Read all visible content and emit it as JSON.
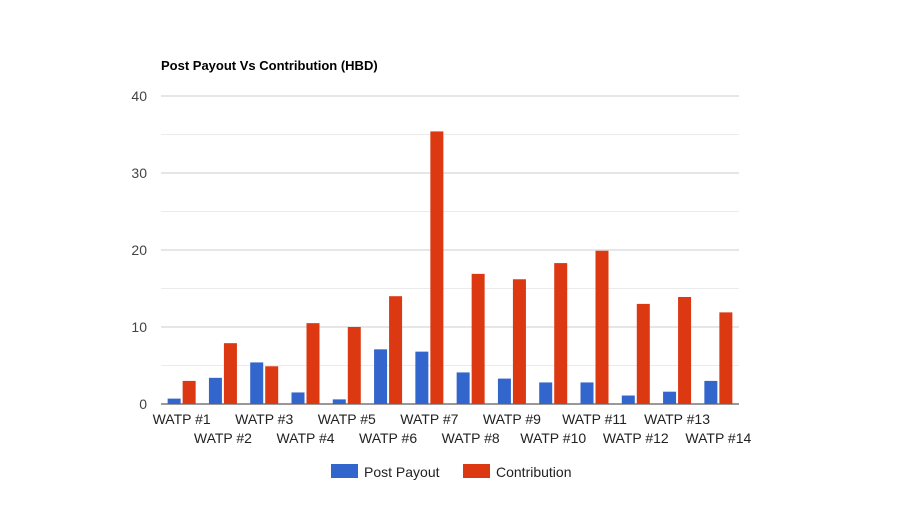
{
  "chart_data": {
    "type": "bar",
    "title": "Post Payout Vs Contribution (HBD)",
    "xlabel": "",
    "ylabel": "",
    "ylim": [
      0,
      40
    ],
    "yticks": [
      0,
      10,
      20,
      30,
      40
    ],
    "categories": [
      "WATP #1",
      "WATP #2",
      "WATP #3",
      "WATP #4",
      "WATP #5",
      "WATP #6",
      "WATP #7",
      "WATP #8",
      "WATP #9",
      "WATP #10",
      "WATP #11",
      "WATP #12",
      "WATP #13",
      "WATP #14"
    ],
    "series": [
      {
        "name": "Post Payout",
        "color": "#3366cc",
        "values": [
          0.7,
          3.4,
          5.4,
          1.5,
          0.6,
          7.1,
          6.8,
          4.1,
          3.3,
          2.8,
          2.8,
          1.1,
          1.6,
          3.0
        ]
      },
      {
        "name": "Contribution",
        "color": "#dc3912",
        "values": [
          3.0,
          7.9,
          4.9,
          10.5,
          10.0,
          14.0,
          35.4,
          16.9,
          16.2,
          18.3,
          19.9,
          13.0,
          13.9,
          11.9
        ]
      }
    ],
    "grid": true,
    "legend_position": "bottom"
  }
}
